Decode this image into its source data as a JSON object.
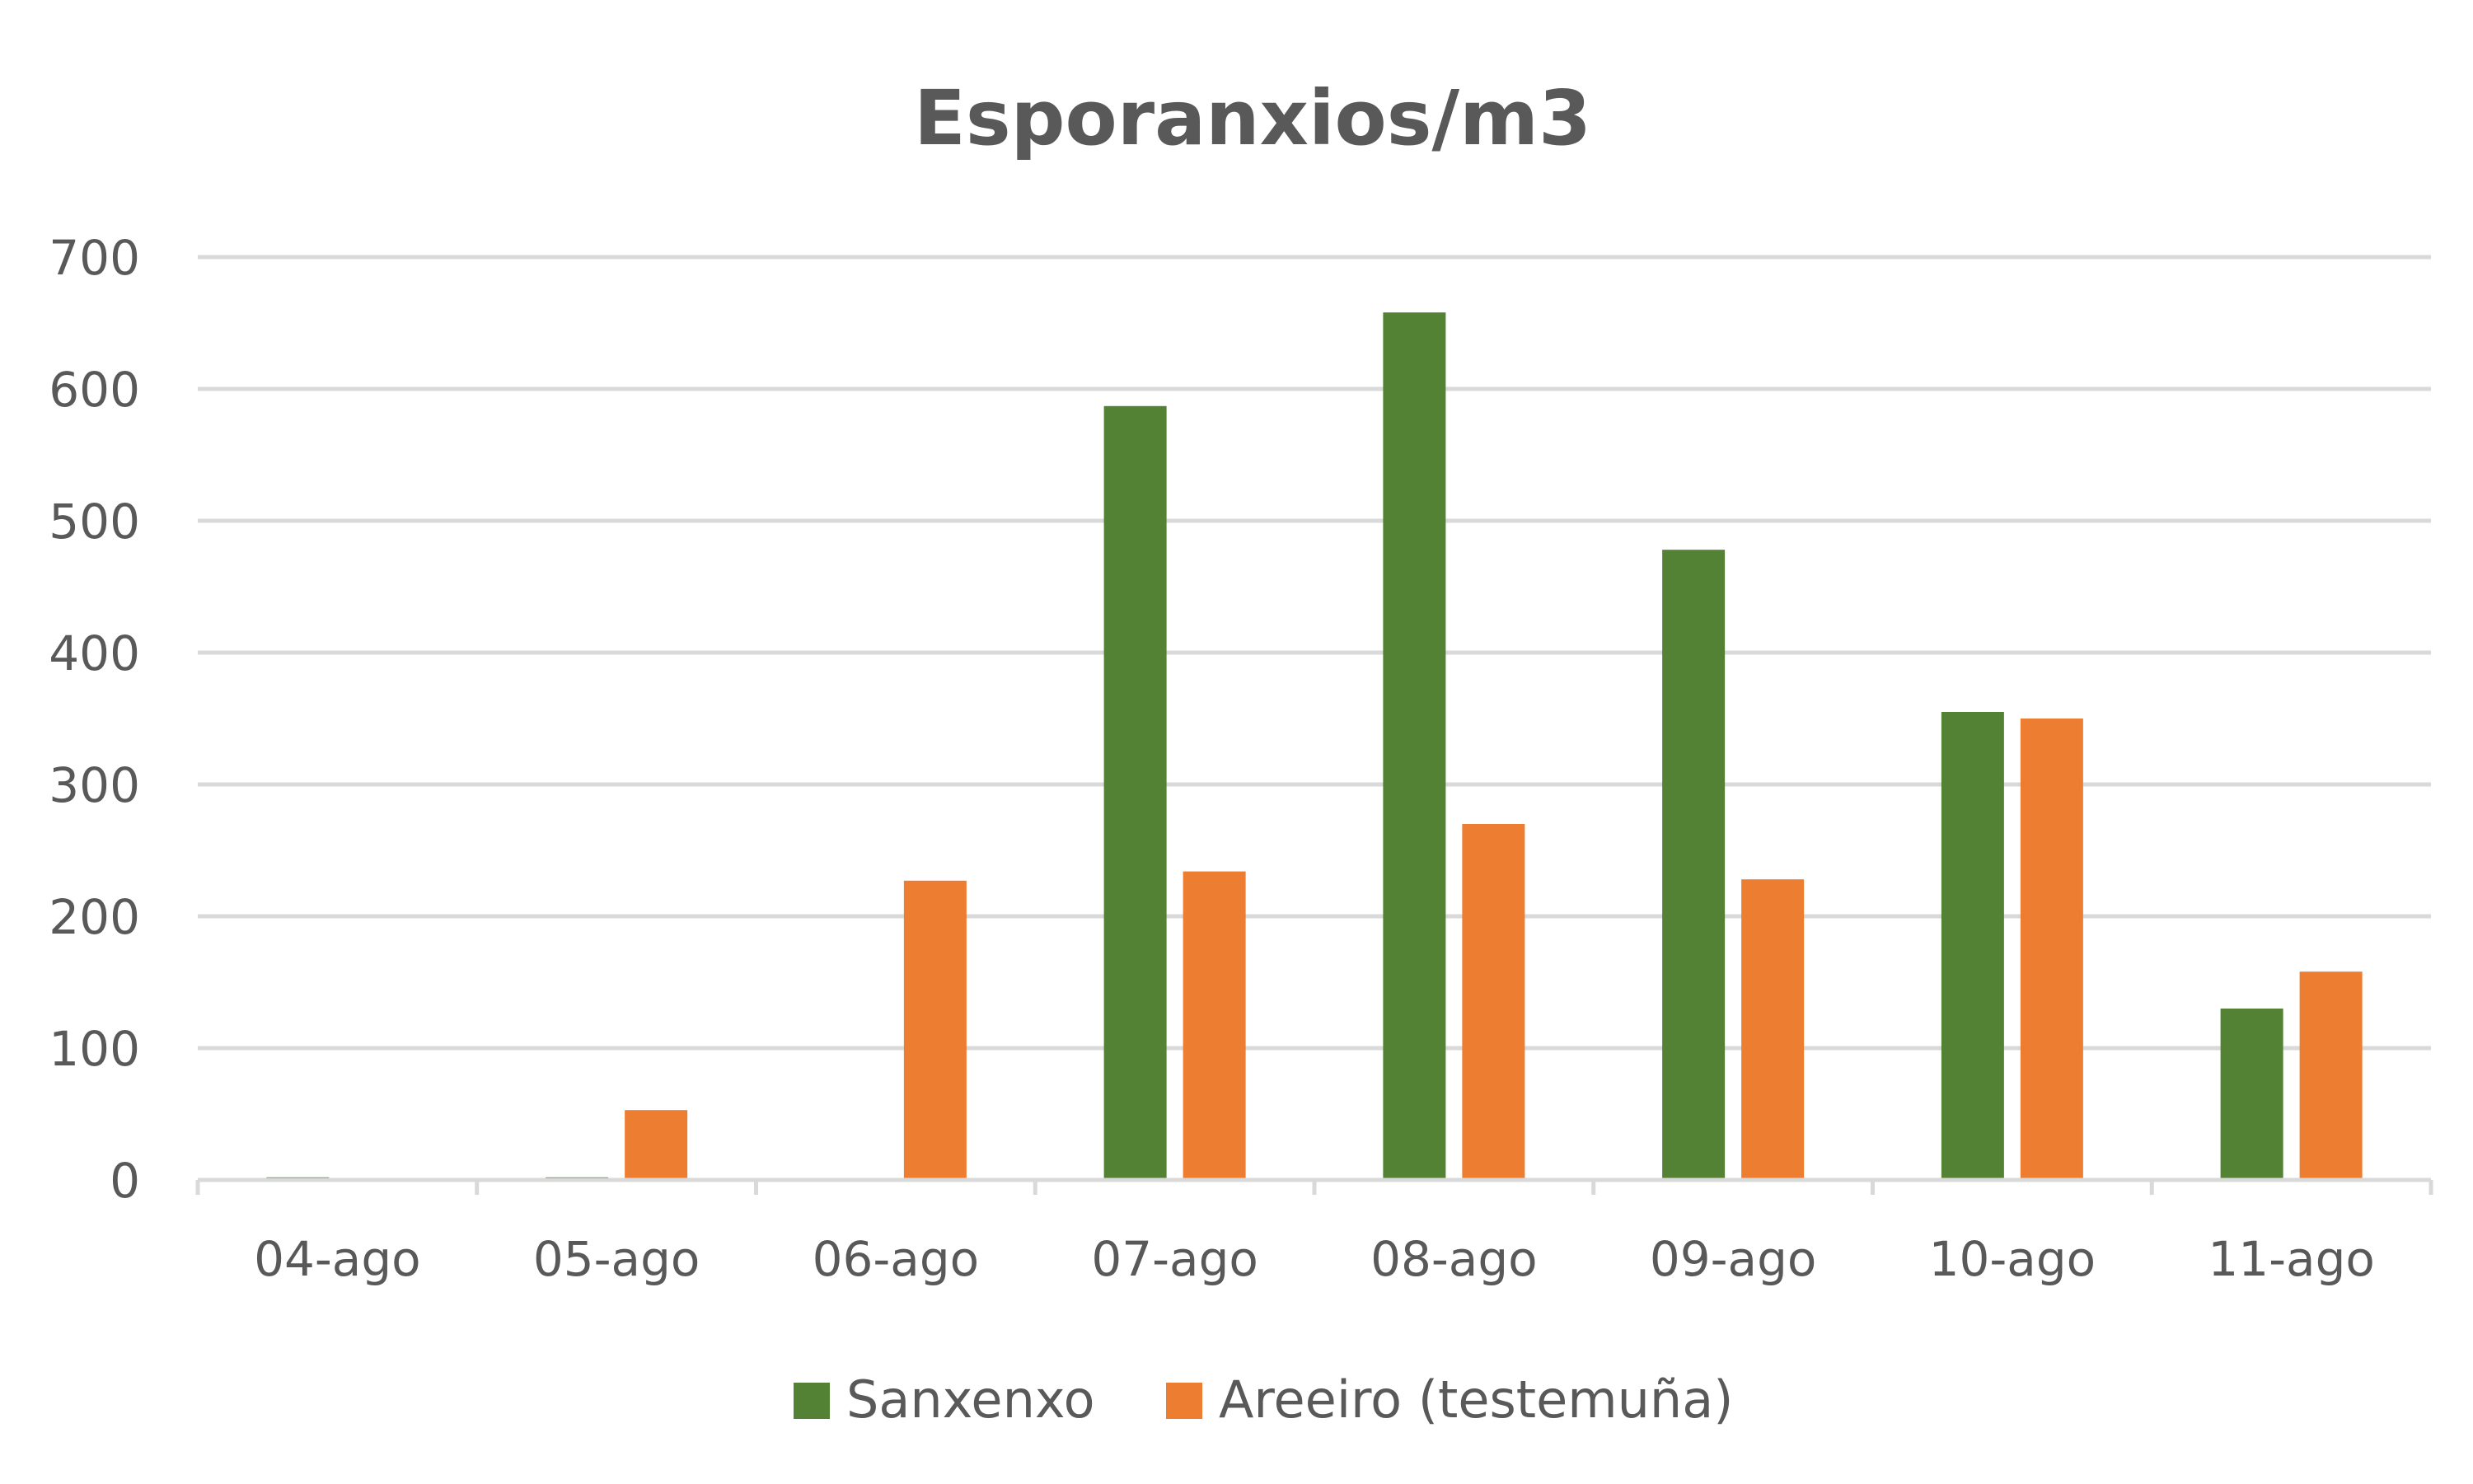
{
  "chart_data": {
    "type": "bar",
    "title": "Esporanxios/m3",
    "xlabel": "",
    "ylabel": "",
    "categories": [
      "04-ago",
      "05-ago",
      "06-ago",
      "07-ago",
      "08-ago",
      "09-ago",
      "10-ago",
      "11-ago"
    ],
    "series": [
      {
        "name": "Sanxenxo",
        "color": "#548235",
        "values": [
          2,
          2,
          0,
          587,
          658,
          478,
          355,
          130
        ]
      },
      {
        "name": "Areeiro (testemuña)",
        "color": "#ed7d31",
        "values": [
          0,
          53,
          227,
          234,
          270,
          228,
          350,
          158
        ]
      }
    ],
    "ylim": [
      0,
      700
    ],
    "yticks": [
      0,
      100,
      200,
      300,
      400,
      500,
      600,
      700
    ],
    "grid": true,
    "legend_position": "bottom"
  }
}
